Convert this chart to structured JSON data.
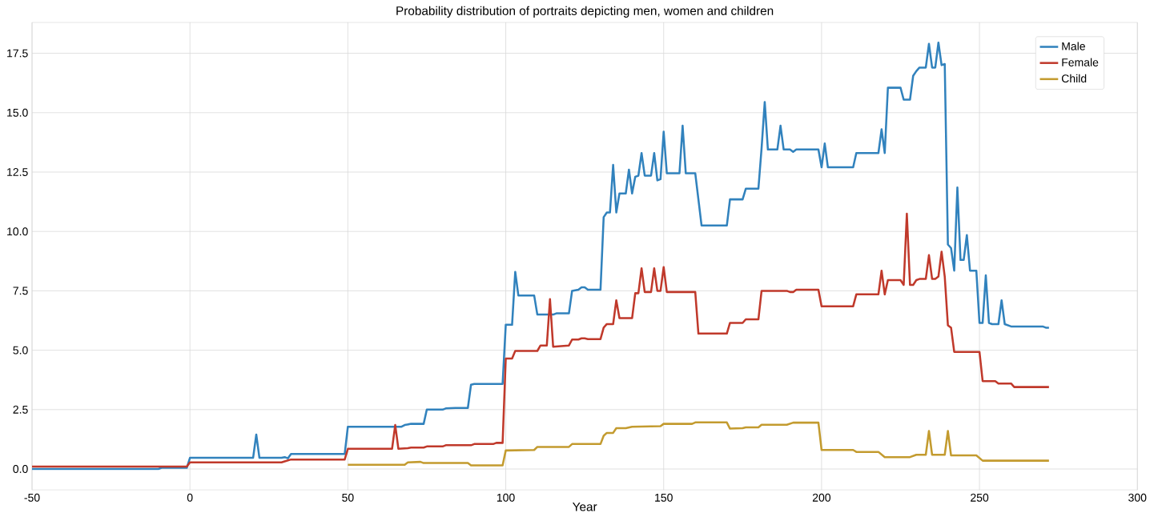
{
  "chart_data": {
    "type": "line",
    "title": "Probability distribution of portraits depicting men, women and children",
    "xlabel": "Year",
    "xlim": [
      -50,
      300
    ],
    "ylim": [
      -0.88,
      18.8
    ],
    "xticks": [
      -50,
      0,
      50,
      100,
      150,
      200,
      250,
      300
    ],
    "yticks": [
      {
        "value": 0,
        "label": "0.0"
      },
      {
        "value": 2.5,
        "label": "2.5"
      },
      {
        "value": 5,
        "label": "5.0"
      },
      {
        "value": 7.5,
        "label": "7.5"
      },
      {
        "value": 10,
        "label": "10.0"
      },
      {
        "value": 12.5,
        "label": "12.5"
      },
      {
        "value": 15,
        "label": "15.0"
      },
      {
        "value": 17.5,
        "label": "17.5"
      }
    ],
    "grid": true,
    "legend": "top right",
    "marker": "none",
    "line_style": "solid",
    "series": [
      {
        "name": "Male",
        "color": "#3182bd",
        "x": [
          -50,
          -10,
          -9,
          -1,
          0,
          20,
          21,
          22,
          29,
          30,
          31,
          32,
          49,
          50,
          67,
          68,
          70,
          74,
          75,
          80,
          81,
          84,
          88,
          89,
          90,
          99,
          100,
          102,
          103,
          104,
          109,
          110,
          115,
          116,
          120,
          121,
          123,
          124,
          125,
          126,
          130,
          131,
          132,
          133,
          134,
          135,
          136,
          138,
          139,
          140,
          141,
          142,
          143,
          144,
          146,
          147,
          148,
          149,
          150,
          151,
          154,
          155,
          156,
          157,
          160,
          162,
          170,
          171,
          175,
          176,
          180,
          181,
          182,
          183,
          186,
          187,
          188,
          190,
          191,
          192,
          199,
          200,
          201,
          202,
          210,
          211,
          218,
          219,
          220,
          221,
          225,
          226,
          228,
          229,
          230,
          231,
          233,
          234,
          235,
          236,
          237,
          238,
          239,
          240,
          241,
          242,
          243,
          244,
          245,
          246,
          247,
          249,
          250,
          251,
          252,
          253,
          254,
          256,
          257,
          258,
          260,
          270,
          271,
          272
        ],
        "values": [
          0,
          0,
          0.05,
          0.05,
          0.47,
          0.47,
          1.45,
          0.47,
          0.47,
          0.5,
          0.45,
          0.63,
          0.63,
          1.78,
          1.78,
          1.85,
          1.9,
          1.9,
          2.5,
          2.5,
          2.55,
          2.57,
          2.57,
          3.55,
          3.58,
          3.58,
          6.07,
          6.07,
          8.3,
          7.3,
          7.3,
          6.5,
          6.5,
          6.55,
          6.55,
          7.5,
          7.55,
          7.65,
          7.65,
          7.55,
          7.55,
          10.6,
          10.8,
          10.8,
          12.8,
          10.8,
          11.6,
          11.6,
          12.6,
          11.6,
          12.3,
          12.35,
          13.3,
          12.35,
          12.35,
          13.3,
          12.15,
          12.2,
          14.2,
          12.45,
          12.45,
          12.45,
          14.45,
          12.45,
          12.45,
          10.25,
          10.25,
          11.35,
          11.35,
          11.8,
          11.8,
          13.5,
          15.45,
          13.45,
          13.45,
          14.45,
          13.45,
          13.45,
          13.35,
          13.45,
          13.45,
          12.7,
          13.7,
          12.7,
          12.7,
          13.3,
          13.3,
          14.3,
          13.3,
          16.05,
          16.05,
          15.55,
          15.55,
          16.55,
          16.75,
          16.9,
          16.9,
          17.9,
          16.9,
          16.9,
          17.95,
          17.0,
          17.05,
          9.45,
          9.3,
          8.35,
          11.85,
          8.8,
          8.8,
          9.85,
          8.35,
          8.35,
          6.15,
          6.15,
          8.15,
          6.15,
          6.1,
          6.1,
          7.1,
          6.1,
          6.0,
          6.0,
          5.95,
          5.95
        ]
      },
      {
        "name": "Female",
        "color": "#c0392b",
        "x": [
          -50,
          -1,
          0,
          29,
          30,
          32,
          49,
          50,
          64,
          65,
          66,
          69,
          70,
          74,
          75,
          80,
          81,
          89,
          90,
          96,
          97,
          99,
          100,
          102,
          103,
          110,
          111,
          113,
          114,
          115,
          120,
          121,
          123,
          124,
          125,
          126,
          130,
          131,
          132,
          134,
          135,
          136,
          140,
          141,
          142,
          143,
          144,
          146,
          147,
          148,
          149,
          150,
          151,
          160,
          161,
          170,
          171,
          175,
          176,
          180,
          181,
          189,
          190,
          191,
          192,
          199,
          200,
          210,
          211,
          218,
          219,
          220,
          221,
          225,
          226,
          227,
          228,
          229,
          230,
          231,
          233,
          234,
          235,
          236,
          237,
          238,
          239,
          240,
          241,
          242,
          243,
          250,
          251,
          255,
          256,
          260,
          261,
          272
        ],
        "values": [
          0.1,
          0.1,
          0.28,
          0.28,
          0.32,
          0.4,
          0.4,
          0.85,
          0.85,
          1.85,
          0.85,
          0.88,
          0.9,
          0.9,
          0.95,
          0.95,
          1.0,
          1.0,
          1.05,
          1.05,
          1.1,
          1.1,
          4.65,
          4.65,
          4.97,
          4.97,
          5.2,
          5.2,
          7.15,
          5.15,
          5.2,
          5.45,
          5.45,
          5.5,
          5.5,
          5.47,
          5.47,
          5.95,
          6.1,
          6.1,
          7.1,
          6.35,
          6.35,
          7.4,
          7.4,
          8.45,
          7.45,
          7.45,
          8.45,
          7.5,
          7.5,
          8.5,
          7.45,
          7.45,
          5.7,
          5.7,
          6.15,
          6.15,
          6.3,
          6.3,
          7.5,
          7.5,
          7.45,
          7.45,
          7.55,
          7.55,
          6.85,
          6.85,
          7.35,
          7.35,
          8.35,
          7.35,
          7.95,
          7.95,
          7.75,
          10.75,
          7.75,
          7.75,
          7.95,
          8.0,
          8.0,
          9.0,
          8.0,
          8.0,
          8.1,
          9.15,
          8.1,
          6.05,
          5.95,
          4.93,
          4.93,
          4.93,
          3.7,
          3.7,
          3.6,
          3.6,
          3.45,
          3.45
        ]
      },
      {
        "name": "Child",
        "color": "#c39b2f",
        "x": [
          50,
          68,
          69,
          73,
          74,
          88,
          89,
          99,
          100,
          109,
          110,
          120,
          121,
          130,
          131,
          132,
          134,
          135,
          138,
          140,
          149,
          150,
          159,
          160,
          170,
          171,
          175,
          176,
          180,
          181,
          189,
          191,
          199,
          200,
          210,
          211,
          218,
          220,
          228,
          230,
          233,
          234,
          235,
          239,
          240,
          241,
          249,
          251,
          272
        ],
        "values": [
          0.18,
          0.18,
          0.28,
          0.3,
          0.25,
          0.25,
          0.15,
          0.15,
          0.78,
          0.8,
          0.93,
          0.93,
          1.05,
          1.05,
          1.4,
          1.52,
          1.52,
          1.72,
          1.72,
          1.78,
          1.8,
          1.9,
          1.9,
          1.96,
          1.96,
          1.7,
          1.72,
          1.75,
          1.75,
          1.86,
          1.86,
          1.95,
          1.95,
          0.8,
          0.8,
          0.72,
          0.72,
          0.5,
          0.5,
          0.6,
          0.6,
          1.6,
          0.6,
          0.6,
          1.6,
          0.57,
          0.57,
          0.35,
          0.35
        ]
      }
    ]
  }
}
